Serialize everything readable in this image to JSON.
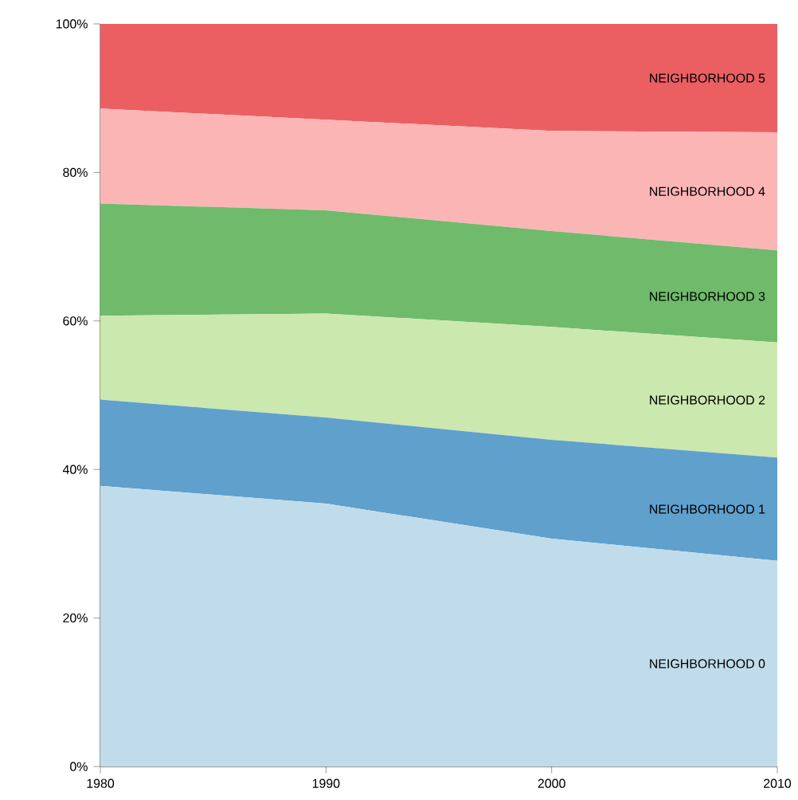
{
  "chart_data": {
    "type": "area",
    "stacked": true,
    "x": [
      1980,
      1990,
      2000,
      2010
    ],
    "series": [
      {
        "name": "NEIGHBORHOOD 0",
        "color": "#c0dcea",
        "values": [
          37.8,
          35.4,
          30.7,
          27.7
        ]
      },
      {
        "name": "NEIGHBORHOOD 1",
        "color": "#5fa0cd",
        "values": [
          11.6,
          11.6,
          13.3,
          13.9
        ]
      },
      {
        "name": "NEIGHBORHOOD 2",
        "color": "#cbe8ae",
        "values": [
          11.3,
          14.0,
          15.2,
          15.5
        ]
      },
      {
        "name": "NEIGHBORHOOD 3",
        "color": "#6fbb6b",
        "values": [
          15.1,
          13.9,
          12.9,
          12.4
        ]
      },
      {
        "name": "NEIGHBORHOOD 4",
        "color": "#fbb5b5",
        "values": [
          12.8,
          12.2,
          13.5,
          15.9
        ]
      },
      {
        "name": "NEIGHBORHOOD 5",
        "color": "#eb5f63",
        "values": [
          11.4,
          12.9,
          14.4,
          14.6
        ]
      }
    ],
    "xlim": [
      1980,
      2010
    ],
    "xticks": [
      1980,
      1990,
      2000,
      2010
    ],
    "ylim": [
      0,
      100
    ],
    "yticks": [
      {
        "value": 0,
        "label": "0%"
      },
      {
        "value": 20,
        "label": "20%"
      },
      {
        "value": 40,
        "label": "40%"
      },
      {
        "value": 60,
        "label": "60%"
      },
      {
        "value": 80,
        "label": "80%"
      },
      {
        "value": 100,
        "label": "100%"
      }
    ],
    "grid": false
  }
}
